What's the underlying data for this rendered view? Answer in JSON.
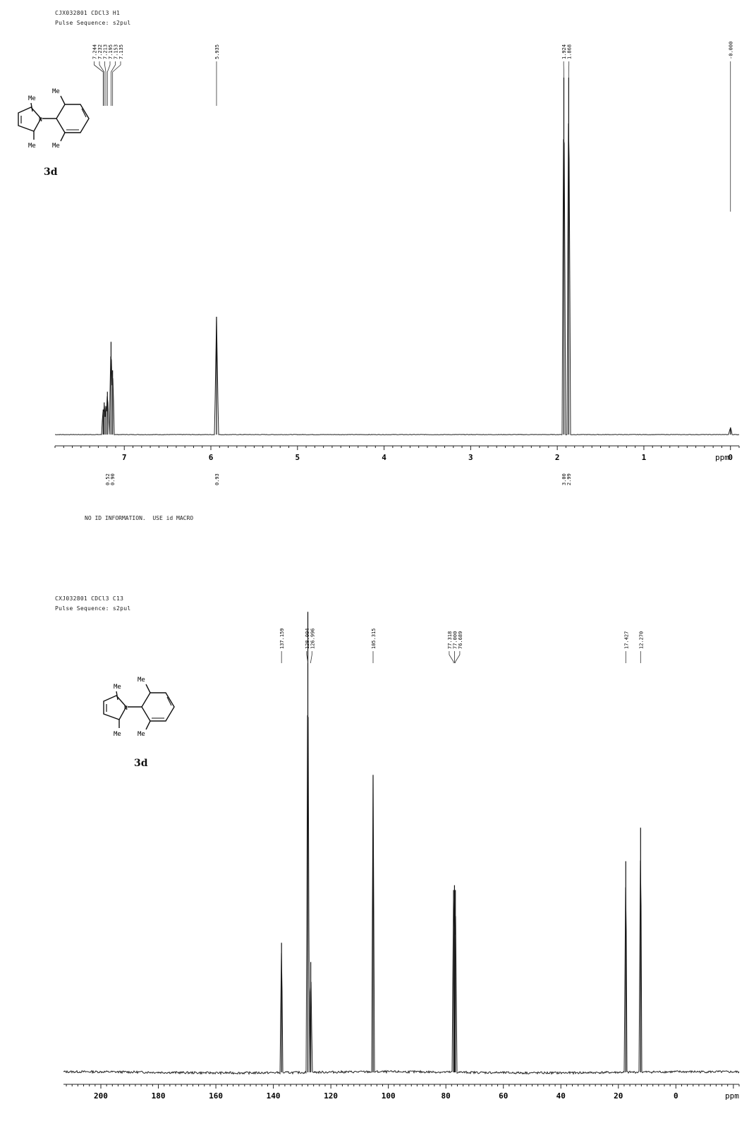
{
  "chart_data": [
    {
      "type": "line",
      "title": "CJX032801 CDCl3 H1",
      "subtitle": "Pulse Sequence: s2pul",
      "xlabel": "ppm",
      "xlim": [
        7.8,
        -0.1
      ],
      "x_ticks": [
        "7",
        "6",
        "5",
        "4",
        "3",
        "2",
        "1",
        "0"
      ],
      "grid": false,
      "compound_label": "3d",
      "structure_labels": [
        "Me",
        "Me",
        "Me",
        "Me",
        "N"
      ],
      "peaks": [
        {
          "x": 7.244,
          "y": 0.07
        },
        {
          "x": 7.232,
          "y": 0.09
        },
        {
          "x": 7.213,
          "y": 0.08
        },
        {
          "x": 7.195,
          "y": 0.12
        },
        {
          "x": 7.153,
          "y": 0.26
        },
        {
          "x": 7.135,
          "y": 0.18
        },
        {
          "x": 5.935,
          "y": 0.33
        },
        {
          "x": 1.924,
          "y": 1.0
        },
        {
          "x": 1.868,
          "y": 1.0
        },
        {
          "x": 0.0,
          "y": 0.02
        }
      ],
      "peak_labels": [
        {
          "text": "7.244",
          "x": 7.244
        },
        {
          "text": "7.232",
          "x": 7.232
        },
        {
          "text": "7.213",
          "x": 7.213
        },
        {
          "text": "7.195",
          "x": 7.195
        },
        {
          "text": "7.153",
          "x": 7.153
        },
        {
          "text": "7.135",
          "x": 7.135
        },
        {
          "text": "5.935",
          "x": 5.935
        },
        {
          "text": "1.924",
          "x": 1.924
        },
        {
          "text": "1.868",
          "x": 1.868
        },
        {
          "text": "-0.000",
          "x": 0.0
        }
      ],
      "integrals": [
        {
          "x": 7.17,
          "values": [
            "0.52",
            "0.90"
          ]
        },
        {
          "x": 5.935,
          "values": [
            "0.93"
          ]
        },
        {
          "x": 1.9,
          "values": [
            "3.00",
            "2.99"
          ]
        }
      ],
      "footer_note": "NO ID INFORMATION.  USE id MACRO"
    },
    {
      "type": "line",
      "title": "CXJ032801 CDCl3 C13",
      "subtitle": "Pulse Sequence: s2pul",
      "xlabel": "ppm",
      "xlim": [
        213,
        -22
      ],
      "x_ticks": [
        "200",
        "180",
        "160",
        "140",
        "120",
        "100",
        "80",
        "60",
        "40",
        "20",
        "0"
      ],
      "grid": false,
      "compound_label": "3d",
      "structure_labels": [
        "Me",
        "Me",
        "Me",
        "Me",
        "N"
      ],
      "peaks": [
        {
          "x": 137.159,
          "y": 0.27
        },
        {
          "x": 128.004,
          "y": 0.96
        },
        {
          "x": 126.996,
          "y": 0.23
        },
        {
          "x": 105.315,
          "y": 0.62
        },
        {
          "x": 77.318,
          "y": 0.38
        },
        {
          "x": 77.0,
          "y": 0.39
        },
        {
          "x": 76.689,
          "y": 0.38
        },
        {
          "x": 17.427,
          "y": 0.44
        },
        {
          "x": 12.27,
          "y": 0.51
        }
      ],
      "peak_labels": [
        {
          "text": "137.159",
          "x": 137.159
        },
        {
          "text": "128.004",
          "x": 128.004
        },
        {
          "text": "126.996",
          "x": 126.996
        },
        {
          "text": "105.315",
          "x": 105.315
        },
        {
          "text": "77.318",
          "x": 77.318
        },
        {
          "text": "77.000",
          "x": 77.0
        },
        {
          "text": "76.689",
          "x": 76.689
        },
        {
          "text": "17.427",
          "x": 17.427
        },
        {
          "text": "12.270",
          "x": 12.27
        }
      ]
    }
  ]
}
